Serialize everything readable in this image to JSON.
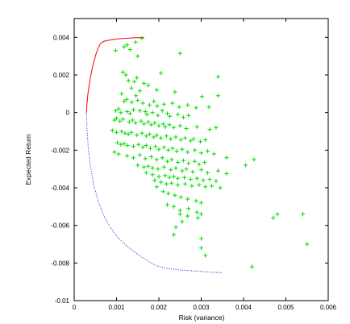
{
  "chart_data": {
    "type": "scatter",
    "title": "",
    "xlabel": "Risk (variance)",
    "ylabel": "Expected Return",
    "xlim": [
      0,
      0.006
    ],
    "ylim": [
      -0.01,
      0.005
    ],
    "x_ticks": [
      0,
      0.001,
      0.002,
      0.003,
      0.004,
      0.005,
      0.006
    ],
    "x_tick_labels": [
      "0",
      "0.001",
      "0.002",
      "0.003",
      "0.004",
      "0.005",
      "0.006"
    ],
    "y_ticks": [
      -0.01,
      -0.008,
      -0.006,
      -0.004,
      -0.002,
      0,
      0.002,
      0.004
    ],
    "y_tick_labels": [
      "-0.01",
      "-0.008",
      "-0.006",
      "-0.004",
      "-0.002",
      "0",
      "0.002",
      "0.004"
    ],
    "grid": false,
    "legend": "none",
    "series": [
      {
        "kind": "line",
        "color": "#ff0000",
        "dash": "solid",
        "x": [
          0.00029,
          0.0003,
          0.00033,
          0.00038,
          0.00045,
          0.00052,
          0.00058,
          0.00062,
          0.00066,
          0.00072,
          0.0008,
          0.0009,
          0.001,
          0.00115,
          0.0013,
          0.00145,
          0.00165
        ],
        "y": [
          0.0,
          0.00045,
          0.0011,
          0.00185,
          0.0026,
          0.00315,
          0.0035,
          0.00366,
          0.00375,
          0.0038,
          0.00384,
          0.00388,
          0.00391,
          0.00394,
          0.00396,
          0.00398,
          0.00399
        ]
      },
      {
        "kind": "line",
        "color": "#3b3bd6",
        "dash": "dotted",
        "x": [
          0.00029,
          0.0003,
          0.00033,
          0.00038,
          0.00045,
          0.00055,
          0.00068,
          0.00085,
          0.00105,
          0.0013,
          0.0016,
          0.0019,
          0.0021,
          0.0024,
          0.0028,
          0.0032,
          0.0035
        ],
        "y": [
          0.0,
          -0.0008,
          -0.0018,
          -0.0028,
          -0.0037,
          -0.0046,
          -0.0054,
          -0.0061,
          -0.0067,
          -0.0072,
          -0.0077,
          -0.0081,
          -0.00825,
          -0.00835,
          -0.00842,
          -0.00848,
          -0.00852
        ]
      },
      {
        "kind": "points",
        "marker": "+",
        "color": "#00dd00",
        "x": [
          0.0016,
          0.00145,
          0.00125,
          0.00118,
          0.00132,
          0.0015,
          0.00098,
          0.0025,
          0.0034,
          0.00115,
          0.00122,
          0.00148,
          0.00128,
          0.00205,
          0.00142,
          0.00165,
          0.00175,
          0.00195,
          0.00135,
          0.00155,
          0.00112,
          0.00146,
          0.00238,
          0.00302,
          0.0034,
          0.00118,
          0.00124,
          0.00136,
          0.0015,
          0.00162,
          0.00178,
          0.00188,
          0.00196,
          0.00212,
          0.00232,
          0.00248,
          0.00268,
          0.00288,
          0.00318,
          0.00098,
          0.00105,
          0.0011,
          0.00125,
          0.00132,
          0.0014,
          0.00155,
          0.00168,
          0.00172,
          0.00185,
          0.00198,
          0.00208,
          0.0022,
          0.00226,
          0.00245,
          0.00258,
          0.0027,
          0.00095,
          0.001,
          0.00108,
          0.00115,
          0.0013,
          0.00138,
          0.00145,
          0.00158,
          0.00165,
          0.00175,
          0.00182,
          0.0019,
          0.002,
          0.0021,
          0.00215,
          0.00225,
          0.00235,
          0.0025,
          0.00265,
          0.0029,
          0.0032,
          0.00335,
          0.0009,
          0.001,
          0.00112,
          0.0012,
          0.00128,
          0.00135,
          0.00148,
          0.0016,
          0.0017,
          0.00178,
          0.00188,
          0.00195,
          0.00205,
          0.00218,
          0.00228,
          0.0024,
          0.00252,
          0.00262,
          0.00275,
          0.00282,
          0.00298,
          0.0031,
          0.00102,
          0.0011,
          0.00118,
          0.00126,
          0.0014,
          0.00152,
          0.00162,
          0.0017,
          0.0018,
          0.00192,
          0.002,
          0.00212,
          0.00222,
          0.00232,
          0.00242,
          0.00255,
          0.00268,
          0.00285,
          0.003,
          0.00315,
          0.0033,
          0.00425,
          0.00405,
          0.00095,
          0.00105,
          0.00125,
          0.0014,
          0.00155,
          0.00168,
          0.00182,
          0.00195,
          0.00208,
          0.0022,
          0.0023,
          0.00245,
          0.00258,
          0.0027,
          0.00285,
          0.00295,
          0.00308,
          0.0015,
          0.00165,
          0.00175,
          0.00185,
          0.00198,
          0.00212,
          0.00228,
          0.0024,
          0.00255,
          0.00265,
          0.0028,
          0.003,
          0.00315,
          0.0034,
          0.0036,
          0.0017,
          0.00185,
          0.002,
          0.00215,
          0.00225,
          0.00235,
          0.00245,
          0.0026,
          0.00275,
          0.0029,
          0.00305,
          0.0032,
          0.00335,
          0.0019,
          0.00205,
          0.00218,
          0.0023,
          0.00245,
          0.00262,
          0.00278,
          0.00295,
          0.0031,
          0.00325,
          0.00345,
          0.00195,
          0.0021,
          0.00222,
          0.00238,
          0.00252,
          0.00268,
          0.00288,
          0.003,
          0.0022,
          0.00235,
          0.0025,
          0.0027,
          0.0029,
          0.0025,
          0.00268,
          0.00292,
          0.00255,
          0.003,
          0.0047,
          0.0048,
          0.0054,
          0.0055,
          0.003,
          0.0031,
          0.0042,
          0.00235,
          0.0024,
          0.003,
          0.0036
        ],
        "y": [
          0.00395,
          0.00375,
          0.0036,
          0.0035,
          0.00335,
          0.003,
          0.0033,
          0.00315,
          0.0019,
          0.00215,
          0.002,
          0.00185,
          0.0017,
          0.0021,
          0.00165,
          0.00155,
          0.00145,
          0.0012,
          0.0013,
          0.00115,
          0.001,
          0.0009,
          0.0011,
          0.00085,
          0.0009,
          0.0006,
          0.0007,
          0.00055,
          0.00065,
          0.0005,
          0.0004,
          0.0006,
          0.00035,
          0.00045,
          0.0005,
          0.0003,
          0.0004,
          0.00025,
          0.0003,
          0.0001,
          0.0002,
          0.0,
          5e-05,
          -5e-05,
          0.00015,
          0.0001,
          5e-05,
          -0.0001,
          0.0,
          -0.00015,
          0.0001,
          -5e-05,
          -0.0002,
          -0.0001,
          -0.00025,
          -0.00015,
          -0.0004,
          -0.0003,
          -0.00045,
          -0.00035,
          -0.0005,
          -0.0004,
          -0.00055,
          -0.00045,
          -0.0006,
          -0.0005,
          -0.00065,
          -0.00055,
          -0.0007,
          -0.0006,
          -0.00075,
          -0.00065,
          -0.0008,
          -0.0007,
          -0.00085,
          -0.00075,
          -0.0009,
          -0.0008,
          -0.00095,
          -0.00105,
          -0.001,
          -0.0011,
          -0.00115,
          -0.00105,
          -0.0012,
          -0.0011,
          -0.00125,
          -0.00115,
          -0.0013,
          -0.0012,
          -0.00135,
          -0.00125,
          -0.0014,
          -0.0013,
          -0.00145,
          -0.00135,
          -0.0015,
          -0.0014,
          -0.00155,
          -0.00145,
          -0.0016,
          -0.0017,
          -0.00165,
          -0.00175,
          -0.0018,
          -0.0017,
          -0.00185,
          -0.00175,
          -0.0019,
          -0.0018,
          -0.00195,
          -0.00185,
          -0.002,
          -0.0019,
          -0.00205,
          -0.00195,
          -0.0021,
          -0.002,
          -0.00215,
          -0.00205,
          -0.0022,
          -0.0025,
          -0.0028,
          -0.0021,
          -0.0022,
          -0.0023,
          -0.0024,
          -0.00225,
          -0.00245,
          -0.00235,
          -0.0025,
          -0.0024,
          -0.0026,
          -0.0025,
          -0.00265,
          -0.00255,
          -0.0027,
          -0.0026,
          -0.00275,
          -0.00265,
          -0.0028,
          -0.0029,
          -0.00285,
          -0.00295,
          -0.003,
          -0.0029,
          -0.00305,
          -0.00295,
          -0.0031,
          -0.003,
          -0.00315,
          -0.00305,
          -0.0032,
          -0.0031,
          -0.00325,
          -0.0032,
          -0.0033,
          -0.0034,
          -0.00335,
          -0.00345,
          -0.0034,
          -0.0035,
          -0.00345,
          -0.00355,
          -0.0035,
          -0.0036,
          -0.00355,
          -0.00365,
          -0.0036,
          -0.0037,
          -0.0038,
          -0.00375,
          -0.00385,
          -0.0038,
          -0.0039,
          -0.00385,
          -0.00395,
          -0.0039,
          -0.004,
          -0.00395,
          -0.0042,
          -0.0043,
          -0.0044,
          -0.0045,
          -0.0046,
          -0.0047,
          -0.0048,
          -0.0049,
          -0.005,
          -0.0052,
          -0.0051,
          -0.0053,
          -0.0054,
          -0.0055,
          -0.0056,
          -0.0058,
          -0.0054,
          -0.0056,
          -0.0054,
          -0.0054,
          -0.007,
          -0.0072,
          -0.0076,
          -0.0082,
          -0.0065,
          -0.0061,
          -0.0067,
          -0.0024
        ],
        "annotations": [],
        "note": ""
      }
    ]
  }
}
